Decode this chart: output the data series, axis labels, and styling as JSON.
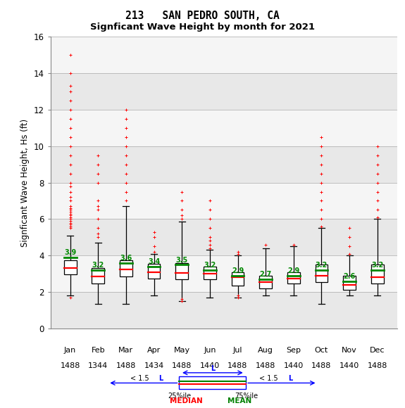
{
  "title1": "213   SAN PEDRO SOUTH, CA",
  "title2": "Signficant Wave Height by month for 2021",
  "ylabel": "Signficant Wave Height, Hs (ft)",
  "months": [
    "Jan",
    "Feb",
    "Mar",
    "Apr",
    "May",
    "Jun",
    "Jul",
    "Aug",
    "Sep",
    "Oct",
    "Nov",
    "Dec"
  ],
  "counts": [
    1488,
    1344,
    1488,
    1434,
    1488,
    1440,
    1488,
    1488,
    1440,
    1488,
    1440,
    1488
  ],
  "means": [
    3.9,
    3.2,
    3.6,
    3.4,
    3.5,
    3.2,
    2.9,
    2.7,
    2.9,
    3.2,
    2.6,
    3.2
  ],
  "medians": [
    3.3,
    2.85,
    3.25,
    3.1,
    3.05,
    3.0,
    2.8,
    2.55,
    2.75,
    2.9,
    2.4,
    2.8
  ],
  "q1s": [
    2.95,
    2.45,
    2.85,
    2.75,
    2.7,
    2.7,
    2.35,
    2.2,
    2.45,
    2.55,
    2.1,
    2.45
  ],
  "q3s": [
    3.75,
    3.3,
    3.75,
    3.55,
    3.6,
    3.4,
    3.1,
    2.9,
    3.1,
    3.5,
    2.9,
    3.5
  ],
  "whislo": [
    1.8,
    1.35,
    1.35,
    1.8,
    1.5,
    1.7,
    1.7,
    1.8,
    1.8,
    1.35,
    1.8,
    1.8
  ],
  "whishi": [
    5.1,
    4.7,
    6.7,
    4.1,
    5.85,
    4.3,
    4.0,
    4.4,
    4.5,
    5.5,
    4.0,
    6.0
  ],
  "fliers_high": [
    [
      5.5,
      5.6,
      5.7,
      5.8,
      5.9,
      6.0,
      6.1,
      6.2,
      6.3,
      6.4,
      6.5,
      6.6,
      6.7,
      7.0,
      7.2,
      7.5,
      7.8,
      8.0,
      8.5,
      9.0,
      9.5,
      10.0,
      10.5,
      11.0,
      11.5,
      12.0,
      12.5,
      13.0,
      13.3,
      14.0,
      15.0
    ],
    [
      5.0,
      5.2,
      5.5,
      6.0,
      6.5,
      6.7,
      7.0,
      8.0,
      8.5,
      9.0,
      9.5
    ],
    [
      7.0,
      7.5,
      8.0,
      8.5,
      9.0,
      9.5,
      10.0,
      10.5,
      11.0,
      11.5,
      12.0
    ],
    [
      4.2,
      4.5,
      5.0,
      5.3
    ],
    [
      6.0,
      6.2,
      6.5,
      7.0,
      7.5
    ],
    [
      4.4,
      4.6,
      4.8,
      5.0,
      5.5,
      6.0,
      6.5,
      7.0
    ],
    [
      4.1,
      4.2
    ],
    [
      4.6
    ],
    [
      4.6
    ],
    [
      5.6,
      6.0,
      6.5,
      7.0,
      7.5,
      8.0,
      8.5,
      9.0,
      9.5,
      10.0,
      10.5
    ],
    [
      4.1,
      4.5,
      5.0,
      5.5
    ],
    [
      6.1,
      6.5,
      7.0,
      7.5,
      8.0,
      8.5,
      9.0,
      9.5,
      10.0
    ]
  ],
  "fliers_low": [
    [
      1.7
    ],
    [],
    [],
    [],
    [
      1.5,
      1.6
    ],
    [],
    [
      1.7,
      1.8
    ],
    [],
    [],
    [],
    [],
    []
  ],
  "bg_bands": [
    [
      0,
      2,
      "#e8e8e8"
    ],
    [
      2,
      4,
      "#f5f5f5"
    ],
    [
      4,
      6,
      "#e8e8e8"
    ],
    [
      6,
      8,
      "#f5f5f5"
    ],
    [
      8,
      10,
      "#e8e8e8"
    ],
    [
      10,
      12,
      "#f5f5f5"
    ],
    [
      12,
      14,
      "#e8e8e8"
    ],
    [
      14,
      16,
      "#f5f5f5"
    ]
  ],
  "box_facecolor": "#ffffff",
  "box_edgecolor": "#000000",
  "median_color": "#ff0000",
  "mean_color": "#008800",
  "flier_color": "#ff0000",
  "whisker_color": "#000000",
  "grid_color": "#cccccc",
  "ylim": [
    0,
    16
  ],
  "yticks": [
    0,
    2,
    4,
    6,
    8,
    10,
    12,
    14,
    16
  ]
}
